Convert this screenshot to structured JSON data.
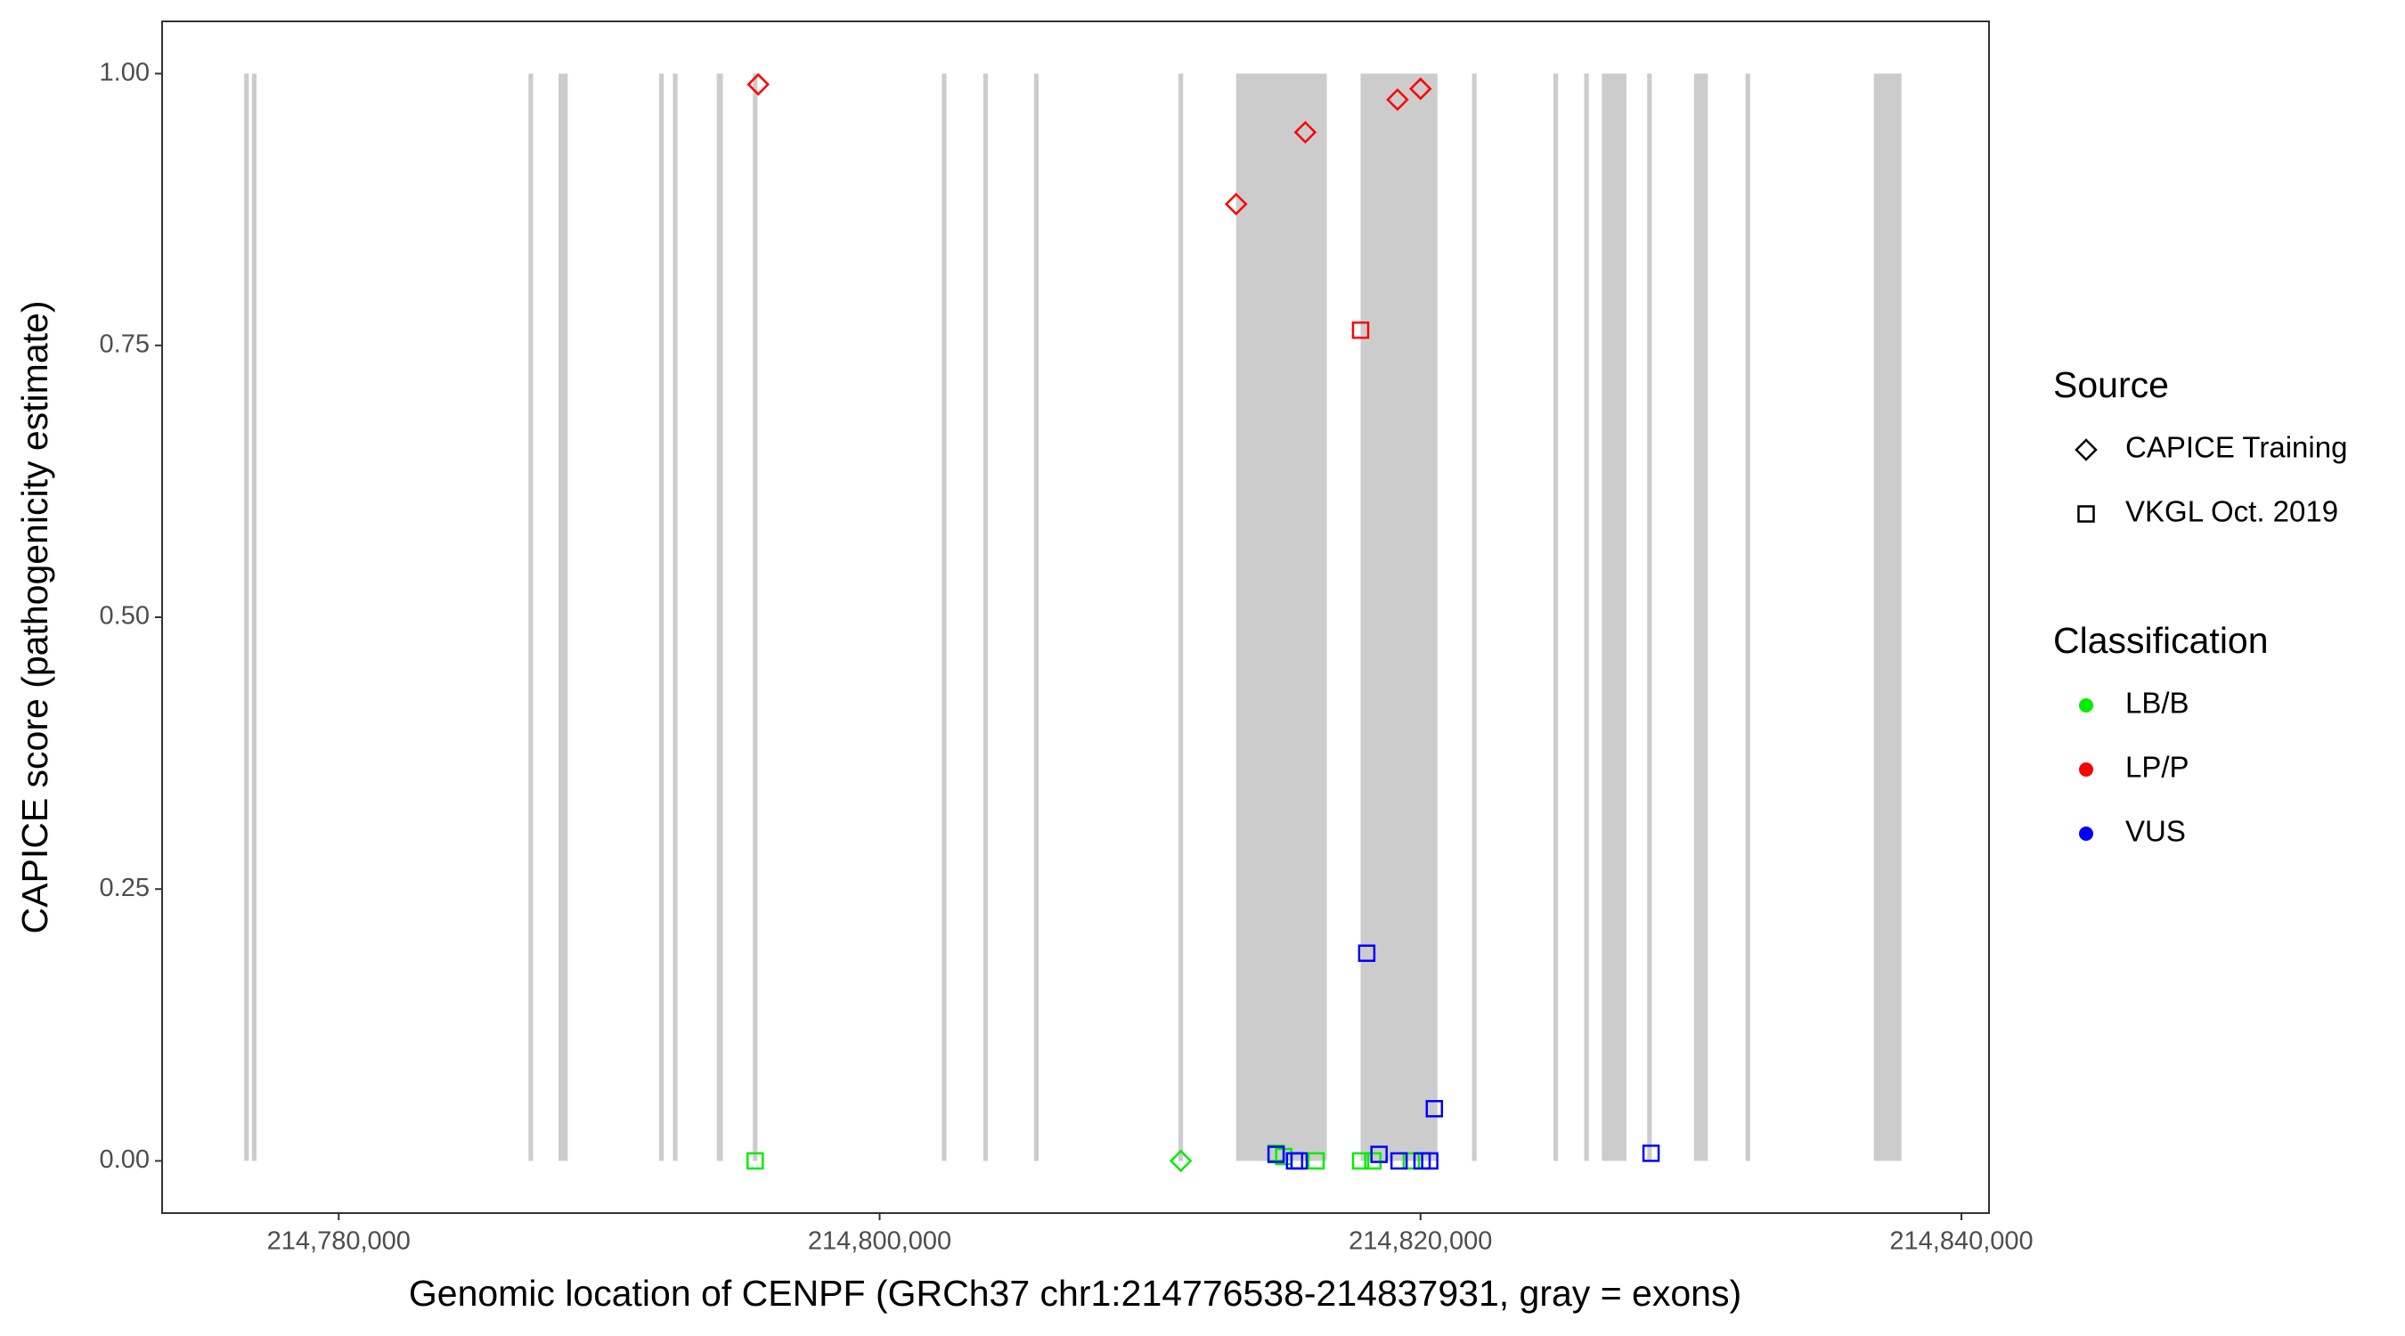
{
  "chart_data": {
    "type": "scatter",
    "xlabel": "Genomic location of CENPF (GRCh37 chr1:214776538-214837931, gray = exons)",
    "ylabel": "CAPICE score (pathogenicity estimate)",
    "xlim": [
      214773470,
      214841020
    ],
    "ylim": [
      -0.048,
      1.048
    ],
    "xticks": [
      {
        "value": 214780000,
        "label": "214,780,000"
      },
      {
        "value": 214800000,
        "label": "214,800,000"
      },
      {
        "value": 214820000,
        "label": "214,820,000"
      },
      {
        "value": 214840000,
        "label": "214,840,000"
      }
    ],
    "yticks": [
      {
        "value": 0,
        "label": "0.00"
      },
      {
        "value": 0.25,
        "label": "0.25"
      },
      {
        "value": 0.5,
        "label": "0.50"
      },
      {
        "value": 0.75,
        "label": "0.75"
      },
      {
        "value": 1,
        "label": "1.00"
      }
    ],
    "exon_color": "#cccccc",
    "exons": [
      [
        214776506,
        214776676
      ],
      [
        214776790,
        214776960
      ],
      [
        214787017,
        214787187
      ],
      [
        214788125,
        214788466
      ],
      [
        214791847,
        214792017
      ],
      [
        214792358,
        214792528
      ],
      [
        214793977,
        214794205
      ],
      [
        214795313,
        214795483
      ],
      [
        214802301,
        214802471
      ],
      [
        214803835,
        214804005
      ],
      [
        214805710,
        214805880
      ],
      [
        214811051,
        214811221
      ],
      [
        214813182,
        214816534
      ],
      [
        214817784,
        214820625
      ],
      [
        214821904,
        214822074
      ],
      [
        214824915,
        214825085
      ],
      [
        214826051,
        214826221
      ],
      [
        214826705,
        214827614
      ],
      [
        214828381,
        214828551
      ],
      [
        214830114,
        214830625
      ],
      [
        214832017,
        214832187
      ],
      [
        214836761,
        214837784
      ]
    ],
    "series": [
      {
        "shape": "diamond",
        "color": "#ff0000",
        "x": [
          214795511,
          214813182,
          214815739,
          214819148,
          214820000
        ],
        "y": [
          0.99,
          0.88,
          0.946,
          0.976,
          0.986
        ]
      },
      {
        "shape": "diamond",
        "color": "#00ee00",
        "x": [
          214811136
        ],
        "y": [
          0
        ]
      },
      {
        "shape": "square",
        "color": "#ff0000",
        "x": [
          214817784
        ],
        "y": [
          0.764
        ]
      },
      {
        "shape": "square",
        "color": "#00ee00",
        "x": [
          214795398,
          214814659,
          214814943,
          214816136,
          214817784,
          214818239,
          214819659
        ],
        "y": [
          0,
          0.007,
          0.004,
          0,
          0,
          0,
          0
        ]
      },
      {
        "shape": "square",
        "color": "#0000ff",
        "x": [
          214814659,
          214815341,
          214815511,
          214818011,
          214818466,
          214819205,
          214820057,
          214820341,
          214820511,
          214828523
        ],
        "y": [
          0.006,
          0,
          0,
          0.191,
          0.006,
          0,
          0,
          0,
          0.048,
          0.007
        ]
      }
    ],
    "legends": [
      {
        "title": "Source",
        "items": [
          {
            "label": "CAPICE Training",
            "shape": "diamond"
          },
          {
            "label": "VKGL Oct. 2019",
            "shape": "square"
          }
        ]
      },
      {
        "title": "Classification",
        "items": [
          {
            "label": "LB/B",
            "color": "#00ee00"
          },
          {
            "label": "LP/P",
            "color": "#ff0000"
          },
          {
            "label": "VUS",
            "color": "#0000ff"
          }
        ]
      }
    ]
  }
}
